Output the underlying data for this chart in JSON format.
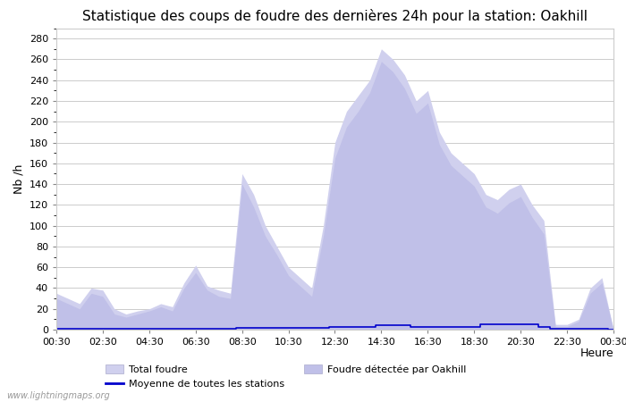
{
  "title": "Statistique des coups de foudre des dernières 24h pour la station: Oakhill",
  "ylabel": "Nb /h",
  "xlabel": "Heure",
  "watermark": "www.lightningmaps.org",
  "ylim": [
    0,
    290
  ],
  "yticks": [
    0,
    20,
    40,
    60,
    80,
    100,
    120,
    140,
    160,
    180,
    200,
    220,
    240,
    260,
    280
  ],
  "xtick_labels": [
    "00:30",
    "02:30",
    "04:30",
    "06:30",
    "08:30",
    "10:30",
    "12:30",
    "14:30",
    "16:30",
    "18:30",
    "20:30",
    "22:30",
    "00:30"
  ],
  "time_hours": [
    0.5,
    1.0,
    1.5,
    2.0,
    2.5,
    3.0,
    3.5,
    4.0,
    4.5,
    5.0,
    5.5,
    6.0,
    6.5,
    7.0,
    7.5,
    8.0,
    8.5,
    9.0,
    9.5,
    10.0,
    10.5,
    11.0,
    11.5,
    12.0,
    12.5,
    13.0,
    13.5,
    14.0,
    14.5,
    15.0,
    15.5,
    16.0,
    16.5,
    17.0,
    17.5,
    18.0,
    18.5,
    19.0,
    19.5,
    20.0,
    20.5,
    21.0,
    21.5,
    22.0,
    22.5,
    23.0,
    23.5,
    24.0,
    24.5
  ],
  "total_foudre": [
    35,
    30,
    25,
    40,
    38,
    20,
    15,
    18,
    20,
    25,
    22,
    45,
    62,
    42,
    38,
    35,
    150,
    130,
    100,
    80,
    60,
    50,
    40,
    100,
    180,
    210,
    225,
    240,
    270,
    260,
    245,
    220,
    230,
    190,
    170,
    160,
    150,
    130,
    125,
    135,
    140,
    120,
    105,
    5,
    5,
    10,
    40,
    50,
    0
  ],
  "oakhill_foudre": [
    30,
    25,
    20,
    35,
    32,
    15,
    12,
    15,
    18,
    22,
    18,
    40,
    55,
    38,
    32,
    30,
    140,
    118,
    90,
    72,
    52,
    42,
    32,
    90,
    165,
    195,
    210,
    228,
    258,
    248,
    232,
    208,
    218,
    178,
    158,
    148,
    138,
    118,
    112,
    122,
    128,
    108,
    92,
    3,
    3,
    8,
    35,
    45,
    0
  ],
  "moyenne": [
    1,
    1,
    1,
    1,
    1,
    1,
    1,
    1,
    1,
    1,
    1,
    1,
    1,
    1,
    1,
    1,
    2,
    2,
    2,
    2,
    2,
    2,
    2,
    2,
    3,
    3,
    3,
    3,
    4,
    4,
    4,
    3,
    3,
    3,
    3,
    3,
    3,
    5,
    5,
    5,
    5,
    5,
    3,
    1,
    1,
    1,
    1,
    1,
    0
  ],
  "total_color": "#d0d0ee",
  "oakhill_color": "#c0c0e8",
  "moyenne_color": "#0000cc",
  "background_color": "#ffffff",
  "grid_color": "#cccccc",
  "title_fontsize": 11,
  "axis_fontsize": 9,
  "tick_fontsize": 8,
  "legend_fontsize": 8
}
